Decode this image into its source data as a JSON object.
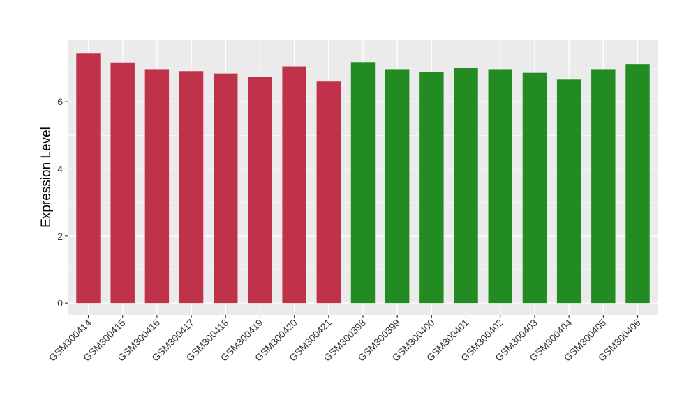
{
  "chart_data": {
    "type": "bar",
    "title": "",
    "xlabel": "",
    "ylabel": "Expression Level",
    "ylim": [
      -0.35,
      7.85
    ],
    "yticks": [
      0,
      2,
      4,
      6
    ],
    "yticks_minor": [
      1,
      3,
      5,
      7
    ],
    "grid": true,
    "background": "#ebebeb",
    "categories": [
      "GSM300414",
      "GSM300415",
      "GSM300416",
      "GSM300417",
      "GSM300418",
      "GSM300419",
      "GSM300420",
      "GSM300421",
      "GSM300398",
      "GSM300399",
      "GSM300400",
      "GSM300401",
      "GSM300402",
      "GSM300403",
      "GSM300404",
      "GSM300405",
      "GSM300406"
    ],
    "values": [
      7.45,
      7.17,
      6.97,
      6.91,
      6.84,
      6.74,
      7.05,
      6.6,
      7.18,
      6.97,
      6.88,
      7.02,
      6.97,
      6.86,
      6.66,
      6.97,
      7.12
    ],
    "colors": [
      "#c0314a",
      "#c0314a",
      "#c0314a",
      "#c0314a",
      "#c0314a",
      "#c0314a",
      "#c0314a",
      "#c0314a",
      "#228b22",
      "#228b22",
      "#228b22",
      "#228b22",
      "#228b22",
      "#228b22",
      "#228b22",
      "#228b22",
      "#228b22"
    ],
    "group_colors": {
      "group_1": "#c0314a",
      "group_2": "#228b22"
    }
  }
}
